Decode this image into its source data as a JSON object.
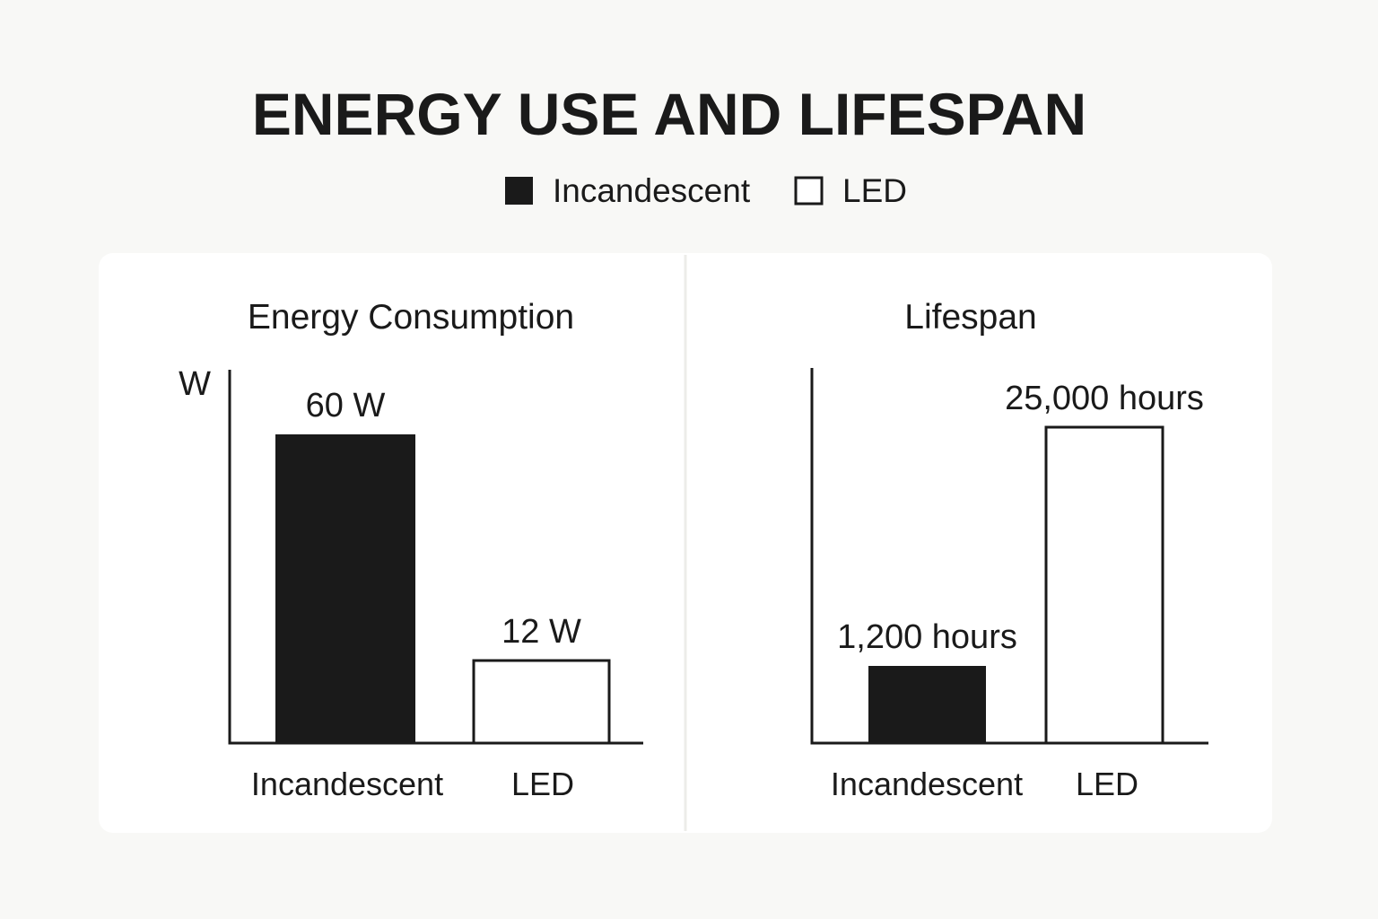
{
  "title": "ENERGY USE AND LIFESPAN",
  "legend": [
    {
      "label": "Incandescent",
      "color": "#1a1a1a",
      "style": "filled"
    },
    {
      "label": "LED",
      "color": "#ffffff",
      "style": "outlined"
    }
  ],
  "chart_data": [
    {
      "type": "bar",
      "title": "Energy Consumption",
      "ylabel": "W",
      "categories": [
        "Incandescent",
        "LED"
      ],
      "values": [
        60,
        12
      ],
      "data_labels": [
        "60 W",
        "12 W"
      ],
      "grid": false
    },
    {
      "type": "bar",
      "title": "Lifespan",
      "ylabel": "",
      "categories": [
        "Incandescent",
        "LED"
      ],
      "values": [
        1200,
        25000
      ],
      "data_labels": [
        "1,200 hours",
        "25,000 hours"
      ],
      "grid": false
    }
  ]
}
